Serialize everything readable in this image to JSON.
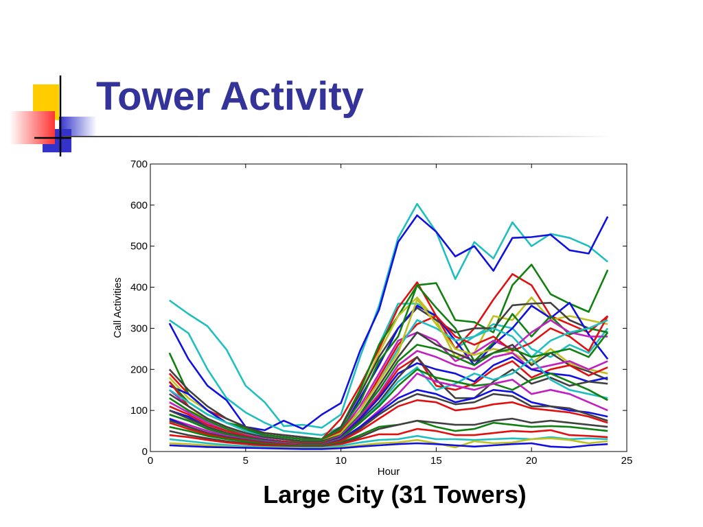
{
  "slide": {
    "title": "Tower Activity",
    "subtitle": "Large City (31 Towers)"
  },
  "chart_data": {
    "type": "line",
    "xlabel": "Hour",
    "ylabel": "Call Activities",
    "xlim": [
      0,
      25
    ],
    "ylim": [
      0,
      700
    ],
    "xticks": [
      "0",
      "5",
      "10",
      "15",
      "20",
      "25"
    ],
    "yticks": [
      "0",
      "100",
      "200",
      "300",
      "400",
      "500",
      "600",
      "700"
    ],
    "grid": false,
    "legend": "none",
    "x": [
      1,
      2,
      3,
      4,
      5,
      6,
      7,
      8,
      9,
      10,
      11,
      12,
      13,
      14,
      15,
      16,
      17,
      18,
      19,
      20,
      21,
      22,
      23,
      24
    ],
    "series": [
      {
        "color": "#1fbfbf",
        "values": [
          368,
          335,
          305,
          248,
          160,
          120,
          62,
          65,
          58,
          90,
          230,
          355,
          520,
          603,
          535,
          420,
          510,
          470,
          558,
          500,
          530,
          520,
          500,
          462
        ]
      },
      {
        "color": "#1010e0",
        "values": [
          312,
          225,
          160,
          125,
          60,
          52,
          75,
          55,
          90,
          118,
          245,
          345,
          510,
          575,
          535,
          475,
          500,
          440,
          520,
          522,
          528,
          490,
          482,
          572
        ]
      },
      {
        "color": "#1fbfbf",
        "values": [
          320,
          288,
          200,
          130,
          95,
          70,
          50,
          45,
          40,
          60,
          150,
          260,
          360,
          360,
          330,
          250,
          280,
          310,
          300,
          250,
          230,
          260,
          240,
          300
        ]
      },
      {
        "color": "#e01010",
        "values": [
          190,
          140,
          100,
          80,
          60,
          45,
          40,
          35,
          30,
          80,
          160,
          250,
          350,
          412,
          330,
          250,
          300,
          370,
          432,
          405,
          330,
          310,
          290,
          330
        ]
      },
      {
        "color": "#108010",
        "values": [
          240,
          140,
          100,
          70,
          60,
          40,
          35,
          30,
          30,
          60,
          150,
          260,
          330,
          405,
          410,
          320,
          315,
          290,
          405,
          455,
          383,
          360,
          340,
          442
        ]
      },
      {
        "color": "#c0c020",
        "values": [
          180,
          130,
          100,
          70,
          50,
          40,
          35,
          30,
          30,
          60,
          140,
          240,
          330,
          375,
          320,
          230,
          240,
          330,
          320,
          375,
          320,
          330,
          320,
          310
        ]
      },
      {
        "color": "#404040",
        "values": [
          200,
          150,
          110,
          80,
          60,
          45,
          40,
          35,
          30,
          60,
          140,
          230,
          300,
          350,
          320,
          290,
          300,
          300,
          356,
          360,
          362,
          320,
          300,
          290
        ]
      },
      {
        "color": "#1010e0",
        "values": [
          160,
          140,
          100,
          70,
          50,
          40,
          35,
          30,
          30,
          50,
          130,
          210,
          300,
          355,
          330,
          270,
          210,
          260,
          300,
          355,
          325,
          362,
          285,
          225
        ]
      },
      {
        "color": "#108010",
        "values": [
          170,
          120,
          90,
          70,
          55,
          40,
          35,
          30,
          30,
          55,
          120,
          220,
          280,
          405,
          350,
          300,
          220,
          265,
          335,
          280,
          330,
          285,
          300,
          290
        ]
      },
      {
        "color": "#c020c0",
        "values": [
          150,
          110,
          80,
          60,
          45,
          35,
          30,
          25,
          25,
          50,
          110,
          190,
          270,
          290,
          270,
          220,
          240,
          270,
          250,
          290,
          320,
          290,
          280,
          280
        ]
      },
      {
        "color": "#e01010",
        "values": [
          170,
          110,
          80,
          60,
          45,
          35,
          30,
          25,
          25,
          50,
          100,
          180,
          260,
          310,
          330,
          280,
          260,
          280,
          245,
          265,
          300,
          280,
          245,
          330
        ]
      },
      {
        "color": "#1fbfbf",
        "values": [
          150,
          120,
          90,
          70,
          50,
          35,
          30,
          25,
          25,
          45,
          100,
          170,
          250,
          320,
          300,
          270,
          280,
          300,
          280,
          230,
          270,
          290,
          300,
          320
        ]
      },
      {
        "color": "#c0c020",
        "values": [
          130,
          100,
          80,
          60,
          45,
          35,
          30,
          25,
          25,
          45,
          100,
          170,
          240,
          370,
          310,
          250,
          235,
          250,
          240,
          215,
          250,
          215,
          200,
          190
        ]
      },
      {
        "color": "#404040",
        "values": [
          140,
          110,
          80,
          60,
          45,
          35,
          30,
          25,
          25,
          40,
          90,
          160,
          230,
          290,
          260,
          240,
          220,
          240,
          260,
          210,
          240,
          210,
          195,
          175
        ]
      },
      {
        "color": "#108010",
        "values": [
          130,
          100,
          75,
          55,
          40,
          30,
          25,
          22,
          22,
          40,
          90,
          150,
          220,
          260,
          250,
          230,
          210,
          240,
          250,
          230,
          240,
          250,
          230,
          290
        ]
      },
      {
        "color": "#c020c0",
        "values": [
          120,
          95,
          70,
          50,
          40,
          30,
          25,
          20,
          20,
          38,
          85,
          140,
          210,
          245,
          230,
          210,
          200,
          230,
          240,
          200,
          210,
          220,
          200,
          220
        ]
      },
      {
        "color": "#e01010",
        "values": [
          110,
          90,
          65,
          50,
          38,
          28,
          24,
          20,
          20,
          35,
          80,
          135,
          200,
          230,
          160,
          150,
          165,
          200,
          220,
          180,
          200,
          210,
          185,
          205
        ]
      },
      {
        "color": "#1010e0",
        "values": [
          100,
          85,
          60,
          45,
          35,
          28,
          22,
          18,
          18,
          35,
          80,
          130,
          190,
          215,
          200,
          190,
          170,
          210,
          230,
          200,
          190,
          185,
          170,
          180
        ]
      },
      {
        "color": "#404040",
        "values": [
          100,
          80,
          60,
          45,
          35,
          27,
          22,
          18,
          18,
          33,
          75,
          120,
          180,
          230,
          175,
          130,
          130,
          170,
          200,
          165,
          180,
          160,
          170,
          165
        ]
      },
      {
        "color": "#1fbfbf",
        "values": [
          90,
          75,
          55,
          42,
          33,
          26,
          21,
          17,
          17,
          32,
          70,
          115,
          170,
          205,
          150,
          165,
          190,
          175,
          190,
          225,
          175,
          150,
          140,
          130
        ]
      },
      {
        "color": "#108010",
        "values": [
          90,
          75,
          55,
          42,
          33,
          26,
          21,
          17,
          17,
          32,
          70,
          110,
          160,
          200,
          180,
          170,
          160,
          165,
          150,
          175,
          190,
          170,
          150,
          125
        ]
      },
      {
        "color": "#c020c0",
        "values": [
          80,
          65,
          50,
          38,
          30,
          24,
          20,
          16,
          16,
          30,
          60,
          100,
          140,
          190,
          170,
          160,
          150,
          165,
          175,
          140,
          150,
          140,
          120,
          100
        ]
      },
      {
        "color": "#1010e0",
        "values": [
          80,
          60,
          45,
          35,
          28,
          22,
          18,
          15,
          15,
          28,
          60,
          95,
          130,
          150,
          140,
          120,
          130,
          150,
          145,
          120,
          110,
          100,
          95,
          85
        ]
      },
      {
        "color": "#404040",
        "values": [
          75,
          60,
          45,
          35,
          28,
          22,
          18,
          15,
          15,
          27,
          55,
          90,
          120,
          140,
          130,
          115,
          120,
          140,
          135,
          110,
          110,
          105,
          90,
          75
        ]
      },
      {
        "color": "#e01010",
        "values": [
          70,
          55,
          42,
          32,
          26,
          20,
          17,
          14,
          14,
          25,
          50,
          80,
          110,
          125,
          120,
          100,
          105,
          115,
          120,
          105,
          100,
          95,
          85,
          70
        ]
      },
      {
        "color": "#108010",
        "values": [
          60,
          50,
          38,
          30,
          24,
          18,
          15,
          13,
          13,
          22,
          40,
          60,
          65,
          75,
          60,
          50,
          55,
          70,
          65,
          60,
          62,
          60,
          55,
          50
        ]
      },
      {
        "color": "#404040",
        "values": [
          50,
          40,
          32,
          25,
          20,
          16,
          13,
          11,
          11,
          20,
          35,
          55,
          65,
          75,
          70,
          65,
          65,
          75,
          80,
          70,
          75,
          70,
          65,
          60
        ]
      },
      {
        "color": "#e01010",
        "values": [
          40,
          35,
          28,
          22,
          18,
          14,
          12,
          10,
          10,
          18,
          30,
          42,
          42,
          55,
          50,
          40,
          40,
          45,
          50,
          48,
          52,
          40,
          38,
          35
        ]
      },
      {
        "color": "#1fbfbf",
        "values": [
          30,
          25,
          20,
          16,
          13,
          11,
          10,
          9,
          9,
          14,
          22,
          28,
          30,
          38,
          30,
          30,
          28,
          30,
          32,
          30,
          35,
          30,
          32,
          30
        ]
      },
      {
        "color": "#c0c020",
        "values": [
          20,
          18,
          15,
          12,
          10,
          9,
          8,
          7,
          7,
          10,
          15,
          20,
          22,
          28,
          20,
          10,
          25,
          20,
          22,
          30,
          32,
          28,
          20,
          25
        ]
      },
      {
        "color": "#1010e0",
        "values": [
          15,
          13,
          11,
          10,
          9,
          8,
          7,
          6,
          6,
          8,
          12,
          15,
          18,
          20,
          18,
          15,
          12,
          15,
          18,
          20,
          12,
          10,
          15,
          18
        ]
      }
    ]
  }
}
